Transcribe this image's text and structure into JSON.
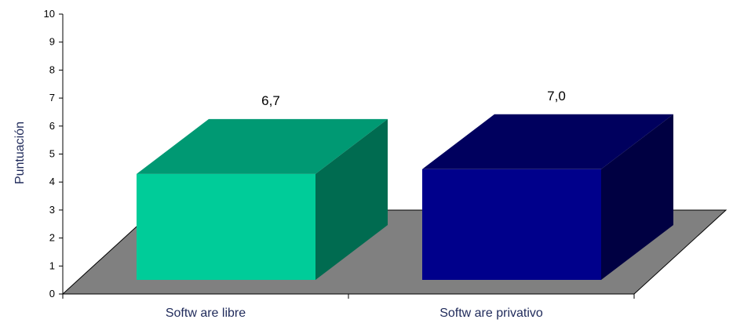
{
  "chart_data": {
    "type": "bar",
    "categories": [
      "Softw are libre",
      "Softw are privativo"
    ],
    "values": [
      6.7,
      7.0
    ],
    "value_labels": [
      "6,7",
      "7,0"
    ],
    "title": "",
    "xlabel": "",
    "ylabel": "Puntuación",
    "ylim": [
      0,
      10
    ],
    "yticks": [
      "0",
      "1",
      "2",
      "3",
      "4",
      "5",
      "6",
      "7",
      "8",
      "9",
      "10"
    ],
    "grid": false,
    "legend": "none",
    "three_d": true,
    "floor_color": "#808080",
    "bar_colors": [
      {
        "front": "#00cc99",
        "top": "#009973",
        "side": "#006b50"
      },
      {
        "front": "#00008b",
        "top": "#00005e",
        "side": "#000042"
      }
    ]
  }
}
